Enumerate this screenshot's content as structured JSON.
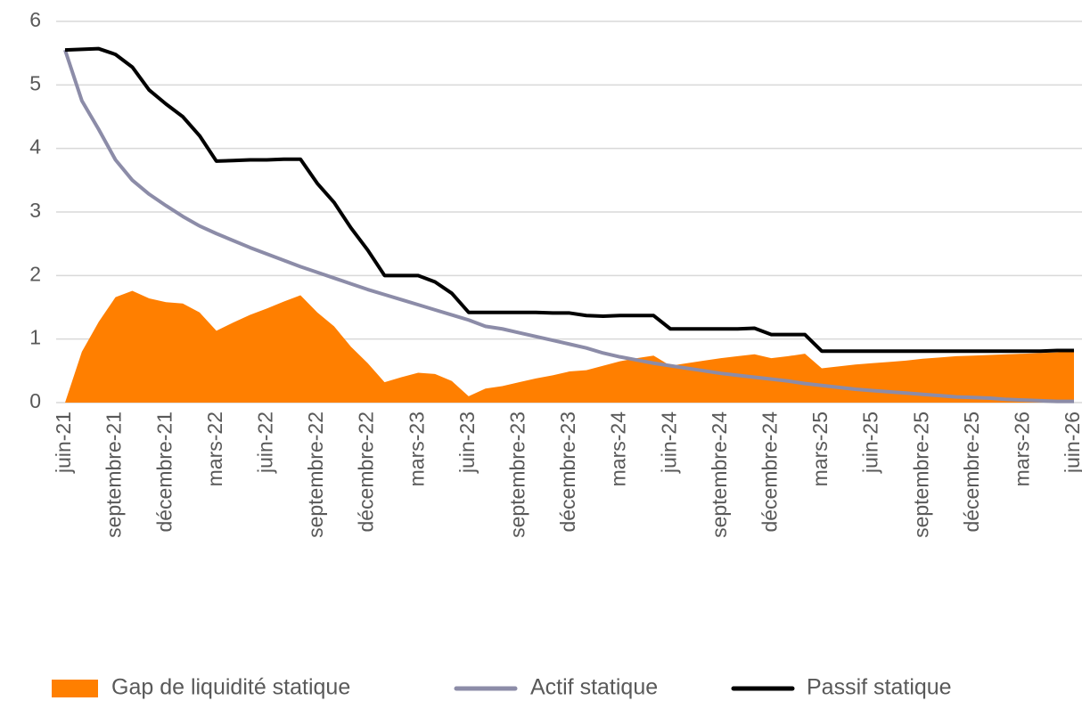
{
  "chart_data": {
    "type": "line",
    "categories": [
      "juin-21",
      null,
      null,
      "septembre-21",
      null,
      null,
      "décembre-21",
      null,
      null,
      "mars-22",
      null,
      null,
      "juin-22",
      null,
      null,
      "septembre-22",
      null,
      null,
      "décembre-22",
      null,
      null,
      "mars-23",
      null,
      null,
      "juin-23",
      null,
      null,
      "septembre-23",
      null,
      null,
      "décembre-23",
      null,
      null,
      "mars-24",
      null,
      null,
      "juin-24",
      null,
      null,
      "septembre-24",
      null,
      null,
      "décembre-24",
      null,
      null,
      "mars-25",
      null,
      null,
      "juin-25",
      null,
      null,
      "septembre-25",
      null,
      null,
      "décembre-25",
      null,
      null,
      "mars-26",
      null,
      null,
      "juin-26"
    ],
    "series": [
      {
        "name": "Gap de liquidité statique",
        "color": "#ff7f00",
        "kind": "area",
        "values": [
          0,
          0.8,
          1.27,
          1.66,
          1.76,
          1.64,
          1.58,
          1.56,
          1.42,
          1.13,
          1.26,
          1.38,
          1.48,
          1.59,
          1.69,
          1.42,
          1.2,
          0.88,
          0.62,
          0.32,
          0.4,
          0.47,
          0.45,
          0.34,
          0.1,
          0.22,
          0.26,
          0.32,
          0.38,
          0.43,
          0.49,
          0.51,
          0.58,
          0.65,
          0.7,
          0.74,
          0.58,
          0.62,
          0.66,
          0.7,
          0.73,
          0.76,
          0.7,
          0.73,
          0.77,
          0.54,
          0.57,
          0.6,
          0.62,
          0.64,
          0.66,
          0.69,
          0.71,
          0.73,
          0.74,
          0.75,
          0.76,
          0.77,
          0.78,
          0.79,
          0.8
        ]
      },
      {
        "name": "Actif statique",
        "color": "#8c8ca8",
        "kind": "line",
        "values": [
          5.55,
          4.75,
          4.3,
          3.82,
          3.5,
          3.28,
          3.1,
          2.93,
          2.78,
          2.66,
          2.55,
          2.44,
          2.34,
          2.24,
          2.14,
          2.05,
          1.96,
          1.87,
          1.78,
          1.7,
          1.62,
          1.54,
          1.46,
          1.38,
          1.3,
          1.2,
          1.16,
          1.1,
          1.04,
          0.98,
          0.92,
          0.86,
          0.78,
          0.72,
          0.67,
          0.62,
          0.58,
          0.54,
          0.5,
          0.46,
          0.43,
          0.4,
          0.37,
          0.34,
          0.3,
          0.27,
          0.24,
          0.21,
          0.19,
          0.17,
          0.15,
          0.13,
          0.11,
          0.09,
          0.08,
          0.07,
          0.05,
          0.04,
          0.03,
          0.02,
          0.02
        ]
      },
      {
        "name": "Passif statique",
        "color": "#000000",
        "kind": "line",
        "values": [
          5.55,
          5.56,
          5.57,
          5.48,
          5.28,
          4.92,
          4.7,
          4.5,
          4.2,
          3.8,
          3.81,
          3.82,
          3.82,
          3.83,
          3.83,
          3.45,
          3.15,
          2.75,
          2.4,
          2.0,
          2.0,
          2.0,
          1.9,
          1.72,
          1.42,
          1.42,
          1.42,
          1.42,
          1.42,
          1.41,
          1.41,
          1.37,
          1.36,
          1.37,
          1.37,
          1.37,
          1.16,
          1.16,
          1.16,
          1.16,
          1.16,
          1.17,
          1.07,
          1.07,
          1.07,
          0.81,
          0.81,
          0.81,
          0.81,
          0.81,
          0.81,
          0.81,
          0.81,
          0.81,
          0.81,
          0.81,
          0.81,
          0.81,
          0.81,
          0.82,
          0.82
        ]
      }
    ],
    "ylim": [
      0,
      6
    ],
    "yticks": [
      0,
      1,
      2,
      3,
      4,
      5,
      6
    ],
    "grid": true,
    "legend": "bottom"
  }
}
